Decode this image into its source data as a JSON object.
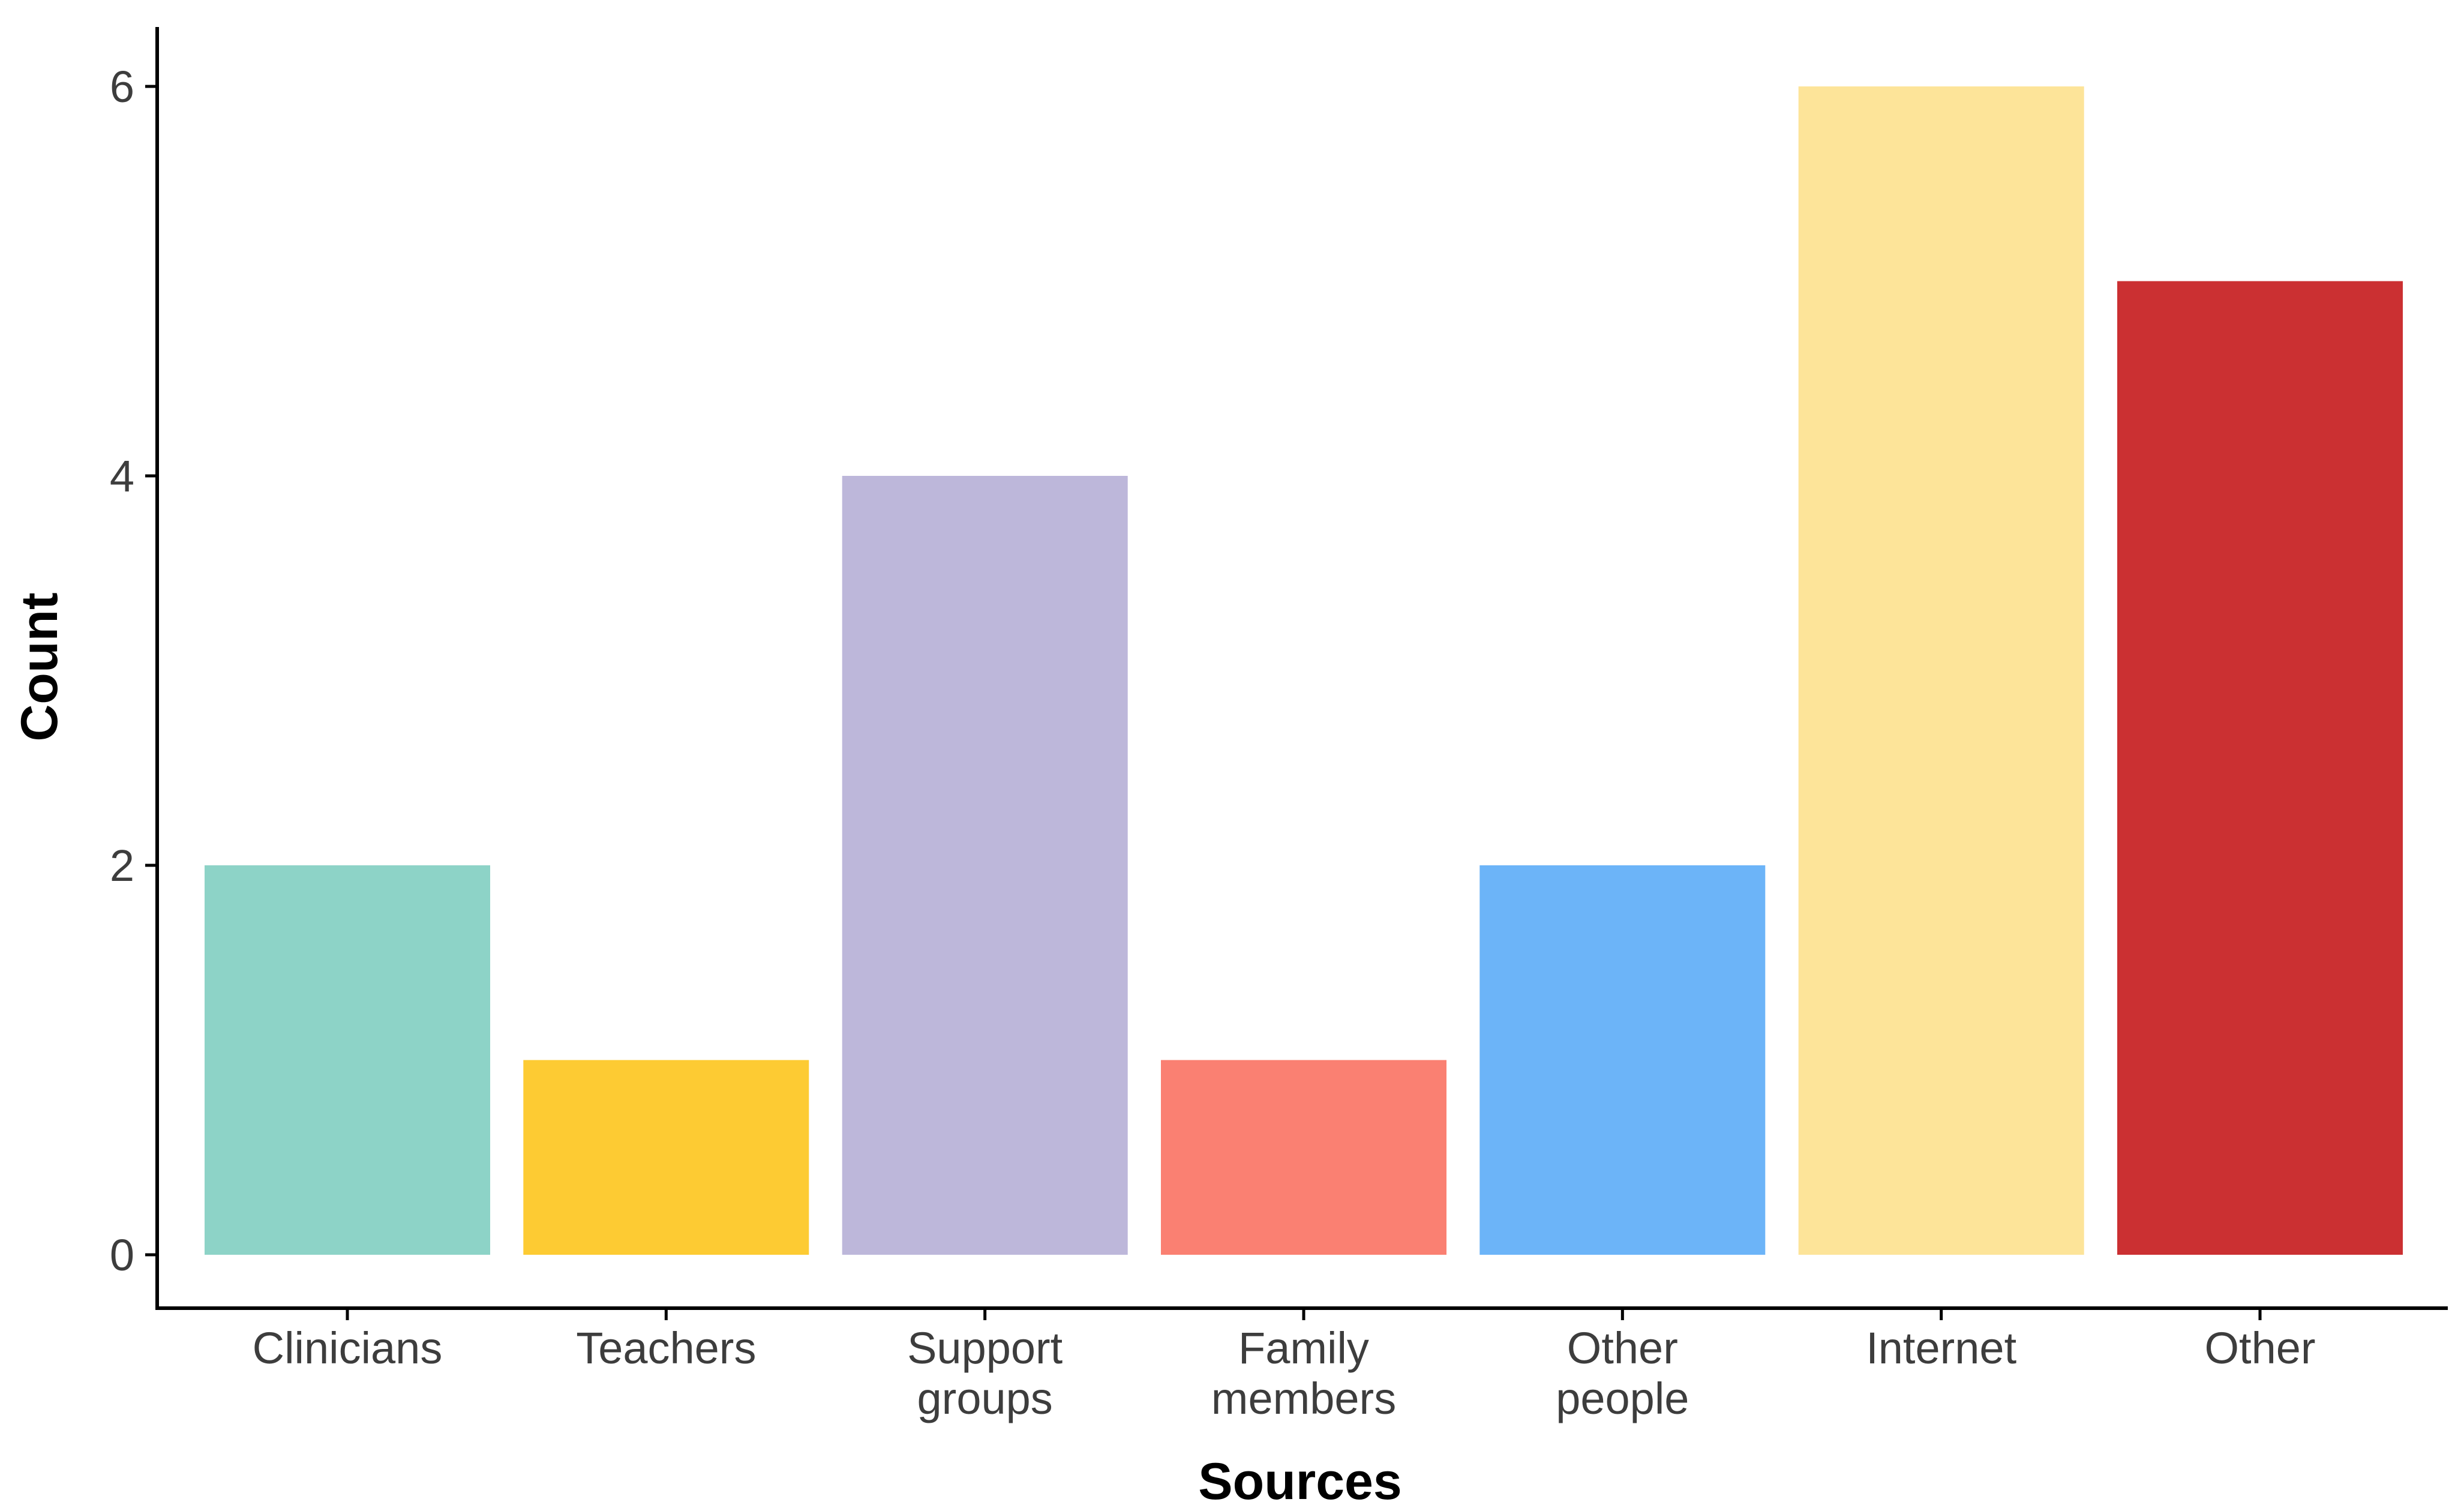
{
  "chart_data": {
    "type": "bar",
    "categories": [
      [
        "Clinicians"
      ],
      [
        "Teachers"
      ],
      [
        "Support",
        "groups"
      ],
      [
        "Family",
        "members"
      ],
      [
        "Other",
        "people"
      ],
      [
        "Internet"
      ],
      [
        "Other"
      ]
    ],
    "values": [
      2,
      1,
      4,
      1,
      2,
      6,
      5
    ],
    "colors": [
      "#8dd3c7",
      "#fdcb33",
      "#bdb7da",
      "#fa8072",
      "#6cb4f8",
      "#fde499",
      "#cb3032"
    ],
    "title": "",
    "xlabel": "Sources",
    "ylabel": "Count",
    "ylim": [
      0,
      6
    ],
    "yticks": [
      0,
      2,
      4,
      6
    ],
    "grid": false,
    "legend": "none"
  }
}
